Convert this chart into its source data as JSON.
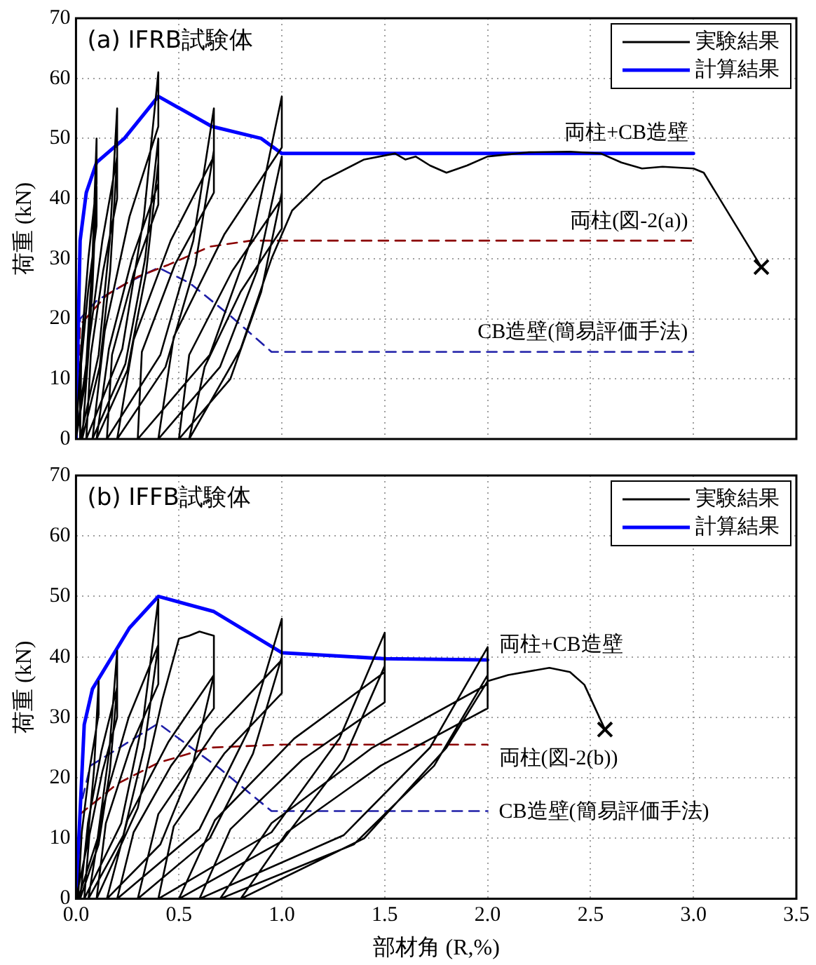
{
  "chart_data": [
    {
      "type": "line",
      "title": "(a) IFRB試験体",
      "ylabel": "荷重 (kN)",
      "xlim": [
        0,
        3.5
      ],
      "ylim": [
        0,
        70
      ],
      "xticks": [
        0,
        0.5,
        1,
        1.5,
        2,
        2.5,
        3,
        3.5
      ],
      "yticks": [
        0,
        10,
        20,
        30,
        40,
        50,
        60,
        70
      ],
      "tick_labels": "y",
      "grid": true,
      "legend": "top right",
      "marker": "none",
      "series": [
        {
          "name": "実験結果",
          "color": "#000000",
          "line_style": "solid",
          "x": [
            0,
            0.05,
            0.08,
            0.1,
            0.1,
            0.06,
            0.025,
            0,
            0.05,
            0.08,
            0.1,
            0.1,
            0.06,
            0.025,
            0.02,
            0.11,
            0.164,
            0.2,
            0.2,
            0.128,
            0.065,
            0.03,
            0.115,
            0.166,
            0.2,
            0.2,
            0.132,
            0.072,
            0.05,
            0.225,
            0.33,
            0.4,
            0.4,
            0.26,
            0.14,
            0.08,
            0.24,
            0.336,
            0.4,
            0.4,
            0.272,
            0.16,
            0.1,
            0.25,
            0.34,
            0.4,
            0.4,
            0.28,
            0.175,
            0.15,
            0.41,
            0.57,
            0.67,
            0.67,
            0.46,
            0.28,
            0.2,
            0.435,
            0.58,
            0.67,
            0.67,
            0.48,
            0.32,
            0.3,
            0.65,
            0.86,
            1.0,
            1.0,
            0.72,
            0.475,
            0.4,
            0.7,
            0.88,
            1.0,
            1.0,
            0.76,
            0.55,
            0.5,
            0.75,
            0.9,
            1.0,
            1.0,
            0.8,
            0.625,
            0.55,
            0.8,
            0.95,
            1.05,
            1.2,
            1.4,
            1.55,
            1.6,
            1.65,
            1.72,
            1.8,
            1.9,
            2.0,
            2.2,
            2.4,
            2.55,
            2.65,
            2.75,
            2.85,
            3.0,
            3.05,
            3.33
          ],
          "values": [
            0,
            12.5,
            30,
            50,
            42.5,
            30,
            15,
            0,
            10.5,
            25,
            42,
            35.5,
            25,
            12.5,
            0,
            14,
            33,
            55,
            47,
            33,
            16.5,
            0,
            12,
            28,
            47,
            40,
            28,
            14,
            0,
            15,
            37,
            61,
            52,
            37,
            18,
            0,
            12.5,
            30,
            50,
            42.5,
            30,
            15,
            0,
            11.5,
            27.5,
            46,
            39,
            27.5,
            14,
            0,
            14,
            33,
            55,
            47,
            33,
            16.5,
            0,
            12,
            29,
            48,
            41,
            29,
            14.5,
            0,
            14,
            34,
            57,
            48.5,
            34,
            17,
            0,
            12,
            28,
            47,
            40,
            28,
            14,
            0,
            10,
            24.5,
            41,
            35,
            24.5,
            12,
            0,
            15,
            30,
            38,
            43,
            46.5,
            47.5,
            46.5,
            47,
            45.5,
            44.3,
            45.5,
            47,
            47.7,
            47.8,
            47.5,
            46,
            45,
            45.3,
            45,
            44.3,
            28.6
          ]
        },
        {
          "type": "scatter",
          "color": "#000000",
          "marker": "cross",
          "x": [
            3.33
          ],
          "values": [
            28.6
          ]
        },
        {
          "name": "計算結果",
          "color": "#0000ff",
          "line_style": "solid",
          "x": [
            0,
            0.02,
            0.05,
            0.1,
            0.235,
            0.4,
            0.66,
            0.9,
            1.0,
            3.0
          ],
          "values": [
            0,
            33,
            41,
            46,
            50,
            57,
            52,
            50,
            47.5,
            47.5
          ]
        },
        {
          "color": "#8b0000",
          "line_style": "dashed",
          "x": [
            0,
            0.02,
            0.15,
            0.3,
            0.45,
            0.65,
            0.85,
            3.0
          ],
          "values": [
            0,
            19,
            24,
            27,
            29,
            32,
            33,
            33
          ]
        },
        {
          "color": "#1f1fa8",
          "line_style": "dashed",
          "x": [
            0,
            0.02,
            0.1,
            0.25,
            0.4,
            0.55,
            0.75,
            0.95,
            3.0
          ],
          "values": [
            0,
            20,
            23,
            26,
            28.5,
            26,
            20.5,
            14.5,
            14.5
          ]
        }
      ],
      "annotations": [
        "両柱+CB造壁",
        "両柱(図-2(a))",
        "CB造壁(簡易評価手法)"
      ]
    },
    {
      "type": "line",
      "title": "(b) IFFB試験体",
      "ylabel": "荷重 (kN)",
      "xlabel": "部材角 (R,%)",
      "xlim": [
        0,
        3.5
      ],
      "ylim": [
        0,
        70
      ],
      "xticks": [
        {
          "value": 0,
          "label": "0.0"
        },
        {
          "value": 0.5,
          "label": "0.5"
        },
        {
          "value": 1,
          "label": "1.0"
        },
        {
          "value": 1.5,
          "label": "1.5"
        },
        {
          "value": 2,
          "label": "2.0"
        },
        {
          "value": 2.5,
          "label": "2.5"
        },
        {
          "value": 3,
          "label": "3.0"
        },
        {
          "value": 3.5,
          "label": "3.5"
        }
      ],
      "yticks": [
        0,
        10,
        20,
        30,
        40,
        50,
        60,
        70
      ],
      "grid": true,
      "legend": "top right",
      "marker": "none",
      "series": [
        {
          "name": "実験結果",
          "color": "#000000",
          "line_style": "solid",
          "x": [
            0,
            0.055,
            0.088,
            0.11,
            0.11,
            0.066,
            0.028,
            0.01,
            0.105,
            0.162,
            0.2,
            0.2,
            0.124,
            0.058,
            0.02,
            0.11,
            0.164,
            0.2,
            0.2,
            0.128,
            0.065,
            0.04,
            0.22,
            0.328,
            0.4,
            0.4,
            0.256,
            0.13,
            0.06,
            0.23,
            0.332,
            0.4,
            0.4,
            0.264,
            0.145,
            0.1,
            0.3,
            0.42,
            0.5,
            0.55,
            0.6,
            0.64,
            0.67,
            0.67,
            0.45,
            0.25,
            0.15,
            0.41,
            0.566,
            0.67,
            0.67,
            0.462,
            0.28,
            0.2,
            0.6,
            0.84,
            1.0,
            1.0,
            0.68,
            0.4,
            0.3,
            0.65,
            0.86,
            1.0,
            1.0,
            0.72,
            0.475,
            0.4,
            0.95,
            1.28,
            1.5,
            1.5,
            1.06,
            0.675,
            0.5,
            1.0,
            1.3,
            1.5,
            1.5,
            1.1,
            0.75,
            0.6,
            1.3,
            1.72,
            2.0,
            2.0,
            1.44,
            0.95,
            0.7,
            1.35,
            1.74,
            2.0,
            2.0,
            1.48,
            1.025,
            0.8,
            1.4,
            1.8,
            2.0,
            2.1,
            2.3,
            2.4,
            2.47,
            2.57
          ],
          "values": [
            0,
            9,
            21.5,
            36,
            30.5,
            21.5,
            11,
            0,
            10,
            24.5,
            41,
            35,
            24.5,
            12.5,
            0,
            9,
            21,
            35,
            30,
            21,
            10.5,
            0,
            12.5,
            30,
            49.5,
            42,
            30,
            15,
            0,
            10.5,
            25,
            42,
            35.5,
            25,
            12.5,
            0,
            15,
            33,
            43,
            43.5,
            44.2,
            43.8,
            43.5,
            37,
            26,
            13,
            0,
            9,
            22,
            37,
            31.5,
            22,
            11,
            0,
            11.5,
            28,
            46.3,
            39.5,
            28,
            14,
            0,
            10,
            24,
            40,
            34,
            24,
            12,
            0,
            11,
            26.5,
            44,
            37.5,
            26.5,
            13,
            0,
            9.5,
            23,
            38.5,
            32.5,
            23,
            11.5,
            0,
            10.5,
            25,
            41.6,
            35.5,
            25,
            12.5,
            0,
            9,
            22,
            37,
            31.5,
            22,
            11,
            0,
            10,
            25,
            36,
            37,
            38.2,
            37.5,
            35.4,
            28
          ]
        },
        {
          "type": "scatter",
          "color": "#000000",
          "marker": "cross",
          "x": [
            2.57
          ],
          "values": [
            28
          ]
        },
        {
          "name": "計算結果",
          "color": "#0000ff",
          "line_style": "solid",
          "x": [
            0,
            0.04,
            0.08,
            0.26,
            0.4,
            0.67,
            1.0,
            1.5,
            2.0
          ],
          "values": [
            0,
            28.8,
            34.7,
            44.8,
            50,
            47.5,
            40.7,
            39.7,
            39.5
          ]
        },
        {
          "color": "#8b0000",
          "line_style": "dashed",
          "x": [
            0,
            0.02,
            0.2,
            0.4,
            0.65,
            1.0,
            2.0
          ],
          "values": [
            0,
            14,
            19,
            22.5,
            25,
            25.5,
            25.5
          ]
        },
        {
          "color": "#1f1fa8",
          "line_style": "dashed",
          "x": [
            0,
            0.02,
            0.07,
            0.4,
            0.7,
            0.95,
            2.0
          ],
          "values": [
            0,
            15,
            22,
            29,
            21.5,
            14.5,
            14.5
          ]
        }
      ],
      "annotations": [
        "両柱+CB造壁",
        "両柱(図-2(b))",
        "CB造壁(簡易評価手法)"
      ]
    }
  ]
}
